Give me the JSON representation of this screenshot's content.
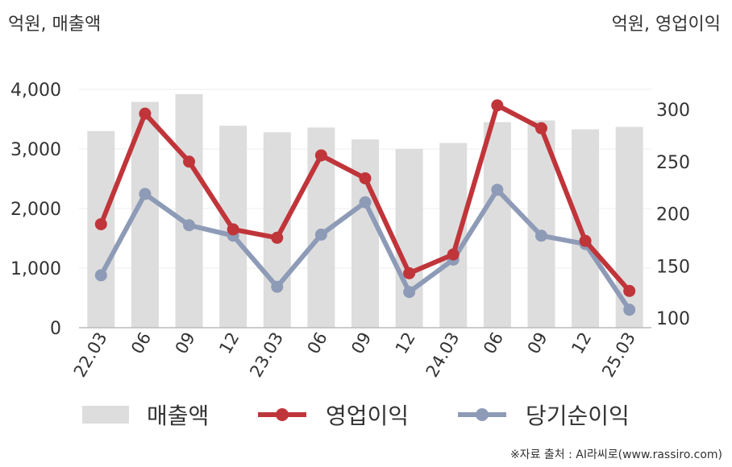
{
  "units": {
    "left": "억원, 매출액",
    "right": "억원, 영업이익"
  },
  "legend": [
    {
      "label": "매출액",
      "color": "#dddddd",
      "kind": "bar"
    },
    {
      "label": "영업이익",
      "color": "#c0353a",
      "kind": "line"
    },
    {
      "label": "당기순이익",
      "color": "#8e9bb7",
      "kind": "line"
    }
  ],
  "source": "※자료 출처 : AI라씨로(www.rassiro.com)",
  "chart_data": {
    "type": "bar",
    "categories": [
      "22.03",
      "06",
      "09",
      "12",
      "23.03",
      "06",
      "09",
      "12",
      "24.03",
      "06",
      "09",
      "12",
      "25.03"
    ],
    "left_axis": {
      "ticks": [
        "0",
        "1,000",
        "2,000",
        "3,000",
        "4,000"
      ],
      "range": [
        0,
        4000
      ]
    },
    "right_axis": {
      "ticks": [
        "100",
        "150",
        "200",
        "250",
        "300"
      ],
      "range": [
        100,
        300
      ]
    },
    "series": [
      {
        "name": "매출액",
        "axis": "left",
        "type": "bar",
        "color": "#dddddd",
        "values": [
          3300,
          3790,
          3920,
          3390,
          3280,
          3360,
          3160,
          3000,
          3100,
          3450,
          3480,
          3330,
          3370
        ]
      },
      {
        "name": "영업이익",
        "axis": "right",
        "type": "line",
        "color": "#c0353a",
        "values": [
          190,
          296,
          250,
          185,
          177,
          256,
          234,
          143,
          161,
          304,
          282,
          174,
          126
        ]
      },
      {
        "name": "당기순이익",
        "axis": "right",
        "type": "line",
        "color": "#8e9bb7",
        "values": [
          141,
          219,
          189,
          179,
          130,
          180,
          211,
          125,
          156,
          223,
          179,
          171,
          108
        ]
      }
    ],
    "grid": true,
    "legend_position": "bottom"
  }
}
